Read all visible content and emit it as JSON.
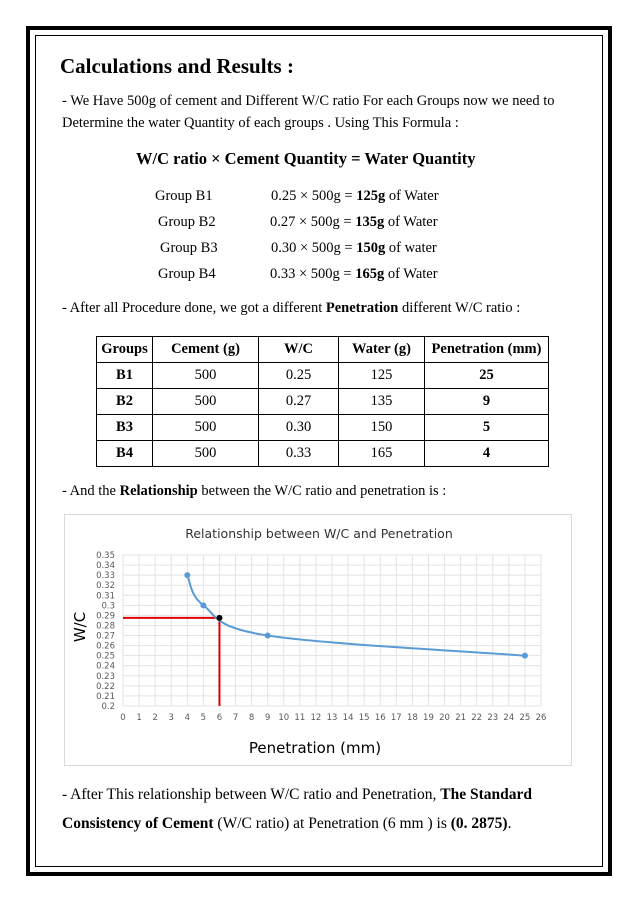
{
  "heading": "Calculations and Results :",
  "intro": {
    "line1": "- We Have 500g of cement and Different W/C ratio For each Groups now we need to",
    "line2": "Determine the water Quantity of each groups . Using This Formula :"
  },
  "formula": "W/C ratio × Cement Quantity = Water Quantity",
  "groups": [
    {
      "name": "Group B1",
      "calc": "0.25 × 500g = ",
      "result": "125g",
      "suffix": " of Water"
    },
    {
      "name": "Group B2",
      "calc": "0.27 × 500g = ",
      "result": "135g",
      "suffix": " of Water"
    },
    {
      "name": "Group B3",
      "calc": "0.30 × 500g = ",
      "result": "150g",
      "suffix": " of water"
    },
    {
      "name": "Group B4",
      "calc": "0.33 × 500g = ",
      "result": "165g",
      "suffix": " of Water"
    }
  ],
  "after_text": {
    "prefix": "- After all Procedure done, we got a different ",
    "bold": "Penetration",
    "suffix": " different W/C ratio :"
  },
  "table": {
    "headers": [
      "Groups",
      "Cement (g)",
      "W/C",
      "Water (g)",
      "Penetration (mm)"
    ],
    "rows": [
      [
        "B1",
        "500",
        "0.25",
        "125",
        "25"
      ],
      [
        "B2",
        "500",
        "0.27",
        "135",
        "9"
      ],
      [
        "B3",
        "500",
        "0.30",
        "150",
        "5"
      ],
      [
        "B4",
        "500",
        "0.33",
        "165",
        "4"
      ]
    ]
  },
  "relationship_text": {
    "prefix": "- And the ",
    "bold": "Relationship",
    "suffix": " between the W/C ratio and penetration is :"
  },
  "chart_data": {
    "type": "scatter",
    "title": "Relationship between W/C and Penetration",
    "xlabel": "Penetration (mm)",
    "ylabel": "W/C",
    "xlim": [
      0,
      26
    ],
    "ylim": [
      0.2,
      0.35
    ],
    "x_ticks": [
      0,
      1,
      2,
      3,
      4,
      5,
      6,
      7,
      8,
      9,
      10,
      11,
      12,
      13,
      14,
      15,
      16,
      17,
      18,
      19,
      20,
      21,
      22,
      23,
      24,
      25,
      26
    ],
    "y_ticks": [
      "0.2",
      "0.21",
      "0.22",
      "0.23",
      "0.24",
      "0.25",
      "0.26",
      "0.27",
      "0.28",
      "0.29",
      "0.3",
      "0.31",
      "0.32",
      "0.33",
      "0.34",
      "0.35"
    ],
    "grid": true,
    "series": [
      {
        "points": [
          [
            4,
            0.33
          ],
          [
            5,
            0.3
          ],
          [
            9,
            0.27
          ],
          [
            25,
            0.25
          ]
        ],
        "color": "#5b9bd5",
        "smooth": true
      }
    ],
    "marked_point": {
      "x": 6,
      "y": 0.2875,
      "color": "#000000"
    },
    "guide_lines": {
      "color": "#e00000"
    }
  },
  "conclusion": {
    "prefix": "- After This relationship between W/C ratio and Penetration, ",
    "bold1": "The Standard Consistency of Cement",
    "middle": " (W/C ratio) at Penetration (6 mm ) is ",
    "bold2": "(0. 2875)",
    "end": "."
  }
}
